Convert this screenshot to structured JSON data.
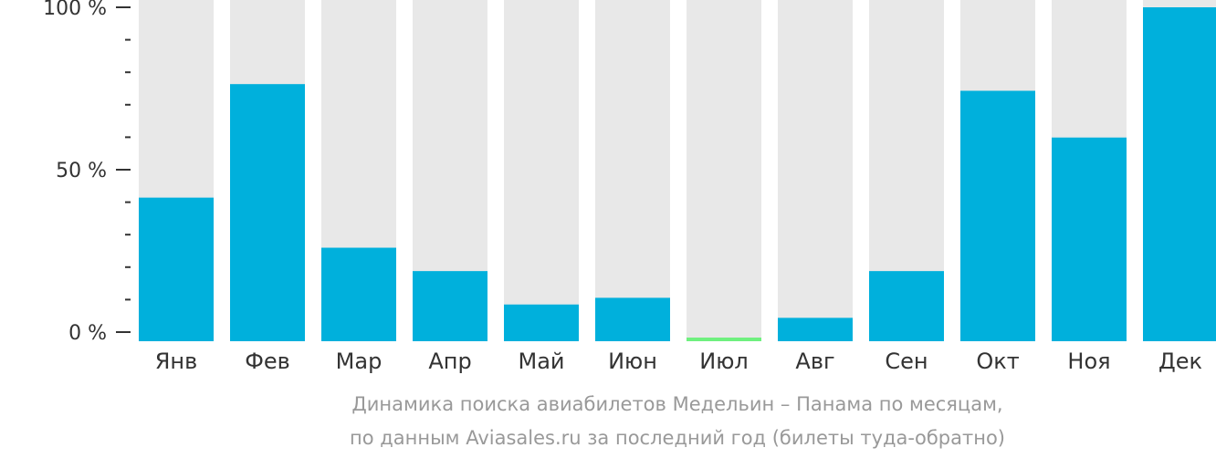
{
  "chart_data": {
    "type": "bar",
    "categories": [
      "Янв",
      "Фев",
      "Мар",
      "Апр",
      "Май",
      "Июн",
      "Июл",
      "Авг",
      "Сен",
      "Окт",
      "Ноя",
      "Дек"
    ],
    "values": [
      43,
      77,
      28,
      21,
      11,
      13,
      1,
      7,
      21,
      75,
      61,
      100
    ],
    "ylim": [
      0,
      100
    ],
    "yticks": [
      "0 %",
      "50 %",
      "100 %"
    ],
    "title": "Динамика поиска авиабилетов Медельин – Панама по месяцам,",
    "subtitle": "по данным Aviasales.ru за последний год (билеты туда-обратно)",
    "highlight_index": 6,
    "colors": {
      "bar": "#00b0dc",
      "highlight": "#6ff07f",
      "background_bar": "#e8e8e8",
      "axis": "#333333",
      "caption": "#999999"
    }
  }
}
